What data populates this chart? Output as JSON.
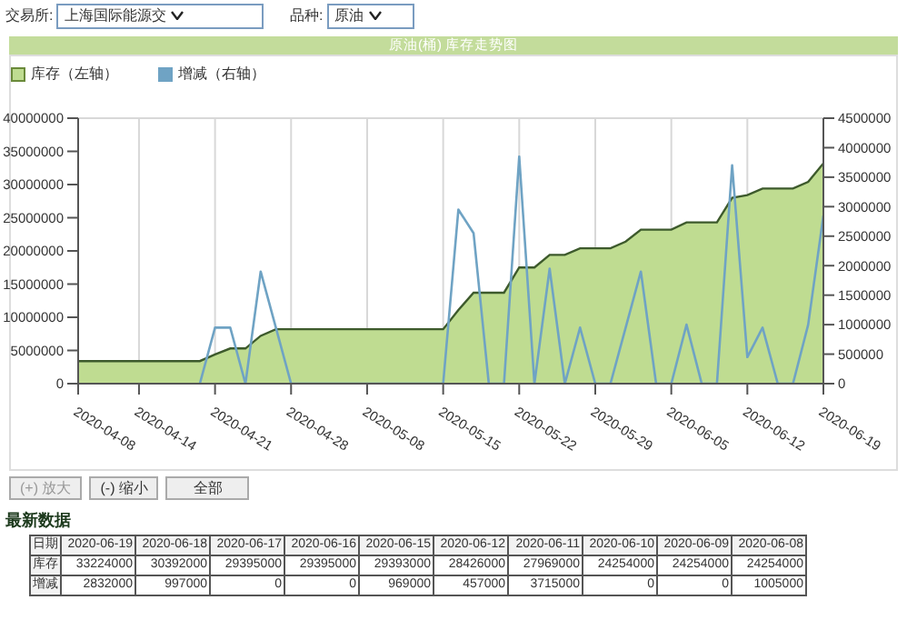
{
  "chart_data": {
    "type": "area",
    "title": "原油(桶) 库存走势图",
    "categories": [
      "2020-04-08",
      null,
      null,
      null,
      "2020-04-14",
      null,
      null,
      null,
      null,
      "2020-04-21",
      null,
      null,
      null,
      null,
      "2020-04-28",
      null,
      null,
      null,
      null,
      "2020-05-08",
      null,
      null,
      null,
      null,
      "2020-05-15",
      null,
      null,
      null,
      null,
      "2020-05-22",
      null,
      null,
      null,
      null,
      "2020-05-29",
      null,
      null,
      null,
      null,
      "2020-06-05",
      null,
      null,
      null,
      null,
      "2020-06-12",
      null,
      null,
      null,
      null,
      "2020-06-19"
    ],
    "series": [
      {
        "name": "库存（左轴）",
        "color": "#bfdc91",
        "values": [
          3400000,
          3400000,
          3400000,
          3400000,
          3400000,
          3400000,
          3400000,
          3400000,
          3400000,
          4400000,
          5300000,
          5300000,
          7200000,
          8200000,
          8200000,
          8200000,
          8200000,
          8200000,
          8200000,
          8200000,
          8200000,
          8200000,
          8200000,
          8200000,
          8200000,
          11100000,
          13700000,
          13700000,
          13700000,
          17500000,
          17500000,
          19400000,
          19400000,
          20400000,
          20400000,
          20400000,
          21400000,
          23200000,
          23200000,
          23200000,
          24300000,
          24300000,
          24300000,
          28000000,
          28400000,
          29400000,
          29400000,
          29400000,
          30400000,
          33200000
        ]
      },
      {
        "name": "增减（右轴）",
        "type": "line",
        "axis": "y2",
        "color": "#6fa3c4",
        "values": [
          null,
          null,
          null,
          null,
          null,
          null,
          null,
          null,
          0,
          950000,
          950000,
          0,
          1900000,
          950000,
          0,
          0,
          0,
          0,
          0,
          0,
          0,
          0,
          0,
          0,
          0,
          2950000,
          2550000,
          0,
          0,
          3850000,
          0,
          1950000,
          0,
          950000,
          0,
          0,
          950000,
          1900000,
          0,
          0,
          1000000,
          0,
          0,
          3700000,
          450000,
          950000,
          0,
          0,
          1000000,
          2850000
        ]
      }
    ],
    "ylim": [
      0,
      40000000
    ],
    "yticks": [
      0,
      5000000,
      10000000,
      15000000,
      20000000,
      25000000,
      30000000,
      35000000,
      40000000
    ],
    "y2lim": [
      0,
      4500000
    ],
    "y2ticks": [
      0,
      500000,
      1000000,
      1500000,
      2000000,
      2500000,
      3000000,
      3500000,
      4000000,
      4500000
    ],
    "grid": true,
    "legend": "top left",
    "annotations": [
      "交易所:",
      "上海国际能源交",
      "品种:",
      "原油",
      "(+) 放大",
      "(-) 缩小",
      "全部",
      "最新数据",
      "日期",
      "库存",
      "增减",
      "2020-06-19",
      "2020-06-18",
      "2020-06-17",
      "2020-06-16",
      "2020-06-15",
      "2020-06-12",
      "2020-06-11",
      "2020-06-10",
      "2020-06-09",
      "2020-06-08",
      "33224000",
      "30392000",
      "29395000",
      "29395000",
      "29393000",
      "28426000",
      "27969000",
      "24254000",
      "24254000",
      "24254000",
      "2832000",
      "997000",
      "0",
      "0",
      "969000",
      "457000",
      "3715000",
      "0",
      "0",
      "1005000"
    ]
  }
}
